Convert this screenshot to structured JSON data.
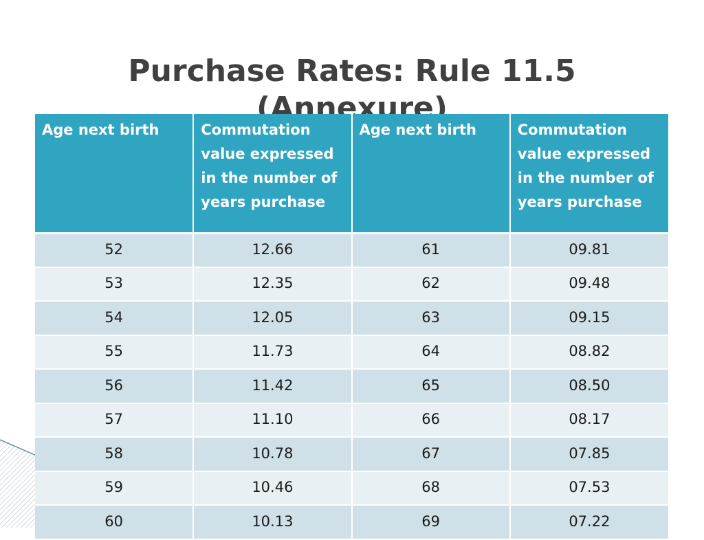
{
  "slide": {
    "title_line1": "Purchase Rates: Rule 11.5",
    "title_line2": "(Annexure)"
  },
  "table": {
    "headers": [
      "Age next birth",
      "Commutation value expressed in the number of years purchase",
      "Age next birth",
      "Commutation value expressed in the number of years purchase"
    ],
    "rows": [
      [
        "52",
        "12.66",
        "61",
        "09.81"
      ],
      [
        "53",
        "12.35",
        "62",
        "09.48"
      ],
      [
        "54",
        "12.05",
        "63",
        "09.15"
      ],
      [
        "55",
        "11.73",
        "64",
        "08.82"
      ],
      [
        "56",
        "11.42",
        "65",
        "08.50"
      ],
      [
        "57",
        "11.10",
        "66",
        "08.17"
      ],
      [
        "58",
        "10.78",
        "67",
        "07.85"
      ],
      [
        "59",
        "10.46",
        "68",
        "07.53"
      ],
      [
        "60",
        "10.13",
        "69",
        "07.22"
      ]
    ]
  },
  "colors": {
    "header_bg": "#2fa5c1",
    "row_odd": "#cfe0e8",
    "row_even": "#e8f0f4",
    "title": "#404040"
  }
}
